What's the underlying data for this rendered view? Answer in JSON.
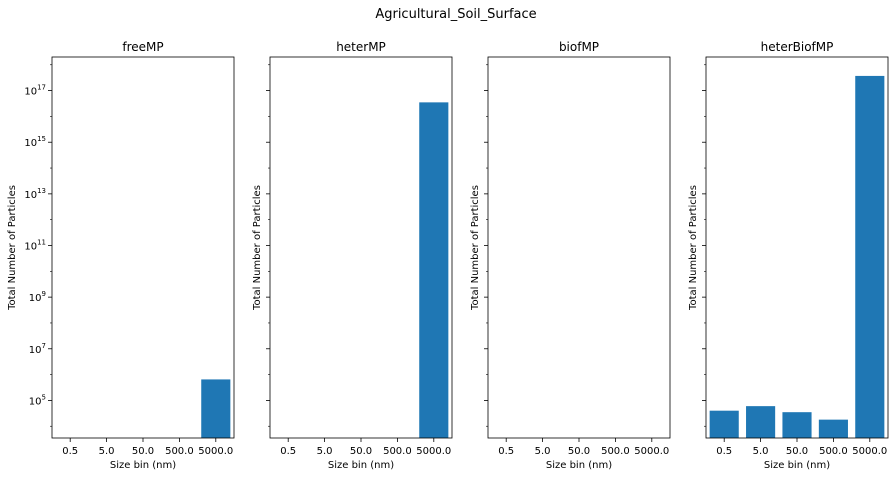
{
  "figure_title": "Agricultural_Soil_Surface",
  "bar_color": "#1f77b4",
  "chart_data": [
    {
      "type": "bar",
      "title": "freeMP",
      "xlabel": "Size bin (nm)",
      "ylabel": "Total Number of Particles",
      "categories": [
        "0.5",
        "5.0",
        "50.0",
        "500.0",
        "5000.0"
      ],
      "values": [
        0,
        0,
        0,
        0,
        650000
      ],
      "yscale": "log",
      "ylim": [
        3500.0,
        2e+18
      ],
      "yticks": [
        "10^5",
        "10^7",
        "10^9",
        "10^11",
        "10^13",
        "10^15",
        "10^17"
      ],
      "show_ytick_labels": true
    },
    {
      "type": "bar",
      "title": "heterMP",
      "xlabel": "Size bin (nm)",
      "ylabel": "Total Number of Particles",
      "categories": [
        "0.5",
        "5.0",
        "50.0",
        "500.0",
        "5000.0"
      ],
      "values": [
        0,
        0,
        0,
        0,
        3.5e+16
      ],
      "yscale": "log",
      "ylim": [
        3500.0,
        2e+18
      ],
      "yticks": [
        "10^5",
        "10^7",
        "10^9",
        "10^11",
        "10^13",
        "10^15",
        "10^17"
      ],
      "show_ytick_labels": false
    },
    {
      "type": "bar",
      "title": "biofMP",
      "xlabel": "Size bin (nm)",
      "ylabel": "Total Number of Particles",
      "categories": [
        "0.5",
        "5.0",
        "50.0",
        "500.0",
        "5000.0"
      ],
      "values": [
        0,
        0,
        0,
        0,
        0
      ],
      "yscale": "log",
      "ylim": [
        3500.0,
        2e+18
      ],
      "yticks": [
        "10^5",
        "10^7",
        "10^9",
        "10^11",
        "10^13",
        "10^15",
        "10^17"
      ],
      "show_ytick_labels": false
    },
    {
      "type": "bar",
      "title": "heterBiofMP",
      "xlabel": "Size bin (nm)",
      "ylabel": "Total Number of Particles",
      "categories": [
        "0.5",
        "5.0",
        "50.0",
        "500.0",
        "5000.0"
      ],
      "values": [
        40000,
        60000,
        35000,
        18000,
        3.7e+17
      ],
      "yscale": "log",
      "ylim": [
        3500.0,
        2e+18
      ],
      "yticks": [
        "10^5",
        "10^7",
        "10^9",
        "10^11",
        "10^13",
        "10^15",
        "10^17"
      ],
      "show_ytick_labels": false
    }
  ]
}
